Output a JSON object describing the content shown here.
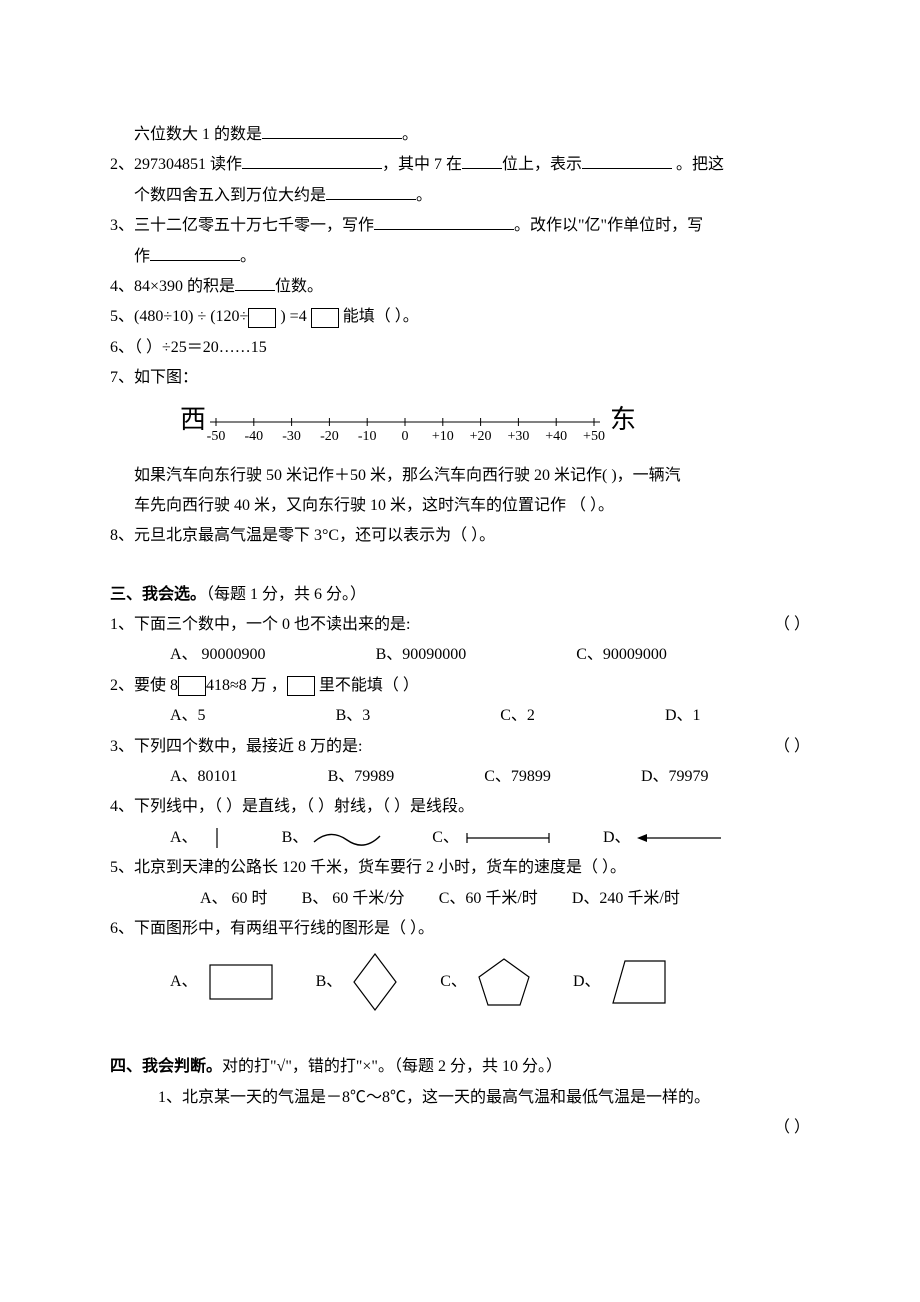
{
  "q1_cont": "六位数大 1 的数是",
  "q1_period": "。",
  "q2": {
    "num": "2、297304851 读作",
    "mid1": "，其中 7 在",
    "mid2": "位上，表示",
    "tail": " 。把这",
    "line2a": "个数四舍五入到万位大约是",
    "line2b": "。"
  },
  "q3": {
    "a": "3、三十二亿零五十万七千零一，写作",
    "b": "。改作以\"亿\"作单位时，写",
    "c": "作",
    "d": "。"
  },
  "q4": {
    "a": "4、84×390 的积是",
    "b": "位数。"
  },
  "q5": {
    "a": "5、(480÷10)  ÷ (120÷",
    "b": "  ) =4   ",
    "c": "  能填（      ）。"
  },
  "q6": "6、（        ）÷25＝20……15",
  "q7": {
    "head": "7、如下图：",
    "west": "西",
    "east": "东",
    "ticks": [
      "-50",
      "-40",
      "-30",
      "-20",
      "-10",
      "0",
      "+10",
      "+20",
      "+30",
      "+40",
      "+50"
    ],
    "p1": "如果汽车向东行驶 50 米记作＋50 米，那么汽车向西行驶 20 米记作(       )，一辆汽",
    "p2": "车先向西行驶 40 米，又向东行驶 10 米，这时汽车的位置记作 （       ）。"
  },
  "q8": "8、元旦北京最高气温是零下 3°C，还可以表示为（       ）。",
  "sec3": {
    "title": "三、我会选。",
    "note": "（每题 1 分，共 6 分。）",
    "q1": {
      "text": "1、下面三个数中，一个 0 也不读出来的是:",
      "paren": "（           ）",
      "a": "A、 90000900",
      "b": "B、90090000",
      "c": "C、90009000"
    },
    "q2": {
      "t1": "2、要使 8",
      "t2": "418≈8 万 ，",
      "t3": " 里不能填（          ）",
      "a": "A、5",
      "b": "B、3",
      "c": "C、2",
      "d": "D、1"
    },
    "q3": {
      "text": "3、下列四个数中，最接近 8 万的是:",
      "paren": "（           ）",
      "a": "A、80101",
      "b": "B、79989",
      "c": "C、79899",
      "d": "D、79979"
    },
    "q4": {
      "text": "4、下列线中，（       ）是直线，（       ）射线，（       ）是线段。",
      "a": "A、",
      "b": "B、",
      "c": "C、",
      "d": "D、"
    },
    "q5": {
      "text": "5、北京到天津的公路长 120 千米，货车要行 2 小时，货车的速度是（      ）。",
      "a": "A、 60 时",
      "b": "B、 60 千米/分",
      "c": "C、60 千米/时",
      "d": "D、240 千米/时"
    },
    "q6": {
      "text": "6、下面图形中，有两组平行线的图形是（      ）。",
      "a": "A、",
      "b": "B、",
      "c": "C、",
      "d": "D、"
    }
  },
  "sec4": {
    "title": "四、我会判断。",
    "note": "对的打\"√\"，错的打\"×\"。（每题 2 分，共 10 分。）",
    "q1": "1、北京某一天的气温是－8℃～8℃，这一天的最高气温和最低气温是一样的。",
    "paren": "（       ）"
  },
  "style": {
    "text_color": "#000000",
    "bg": "#ffffff",
    "font_size_pt": 12,
    "line_color": "#000000",
    "numline_fontsize": 14,
    "numline_end_fontsize": 26
  }
}
